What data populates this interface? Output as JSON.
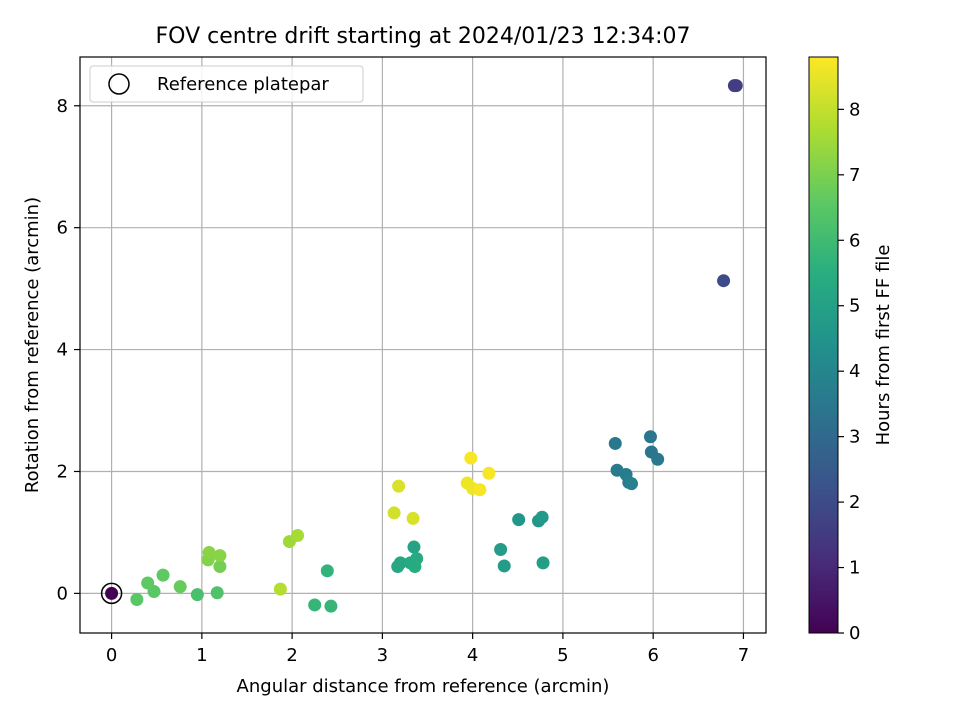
{
  "chart_data": {
    "type": "scatter",
    "title": "FOV centre drift starting at 2024/01/23 12:34:07",
    "xlabel": "Angular distance from reference (arcmin)",
    "ylabel": "Rotation from reference (arcmin)",
    "xlim": [
      -0.35,
      7.25
    ],
    "ylim": [
      -0.65,
      8.8
    ],
    "xticks": [
      "0",
      "1",
      "2",
      "3",
      "4",
      "5",
      "6",
      "7"
    ],
    "yticks": [
      "0",
      "2",
      "4",
      "6",
      "8"
    ],
    "grid": true,
    "legend": {
      "placement": "top-left",
      "entries": [
        "Reference platepar"
      ]
    },
    "reference_point": {
      "x": 0,
      "y": 0
    },
    "colorbar": {
      "label": "Hours from first FF file",
      "range": [
        0,
        8.8
      ],
      "ticks": [
        "0",
        "1",
        "2",
        "3",
        "4",
        "5",
        "6",
        "7",
        "8"
      ],
      "colormap": "viridis"
    },
    "points": [
      {
        "x": 0.0,
        "y": 0.0,
        "c": 0.0
      },
      {
        "x": 6.9,
        "y": 8.33,
        "c": 1.6
      },
      {
        "x": 6.92,
        "y": 8.33,
        "c": 1.6
      },
      {
        "x": 6.78,
        "y": 5.13,
        "c": 2.0
      },
      {
        "x": 5.97,
        "y": 2.57,
        "c": 3.4
      },
      {
        "x": 5.98,
        "y": 2.32,
        "c": 3.4
      },
      {
        "x": 6.05,
        "y": 2.2,
        "c": 3.5
      },
      {
        "x": 5.58,
        "y": 2.46,
        "c": 3.5
      },
      {
        "x": 5.6,
        "y": 2.02,
        "c": 3.6
      },
      {
        "x": 5.7,
        "y": 1.95,
        "c": 3.7
      },
      {
        "x": 5.73,
        "y": 1.82,
        "c": 3.7
      },
      {
        "x": 5.76,
        "y": 1.8,
        "c": 3.8
      },
      {
        "x": 4.51,
        "y": 1.21,
        "c": 4.6
      },
      {
        "x": 4.73,
        "y": 1.19,
        "c": 4.6
      },
      {
        "x": 4.77,
        "y": 1.25,
        "c": 4.7
      },
      {
        "x": 4.31,
        "y": 0.72,
        "c": 4.8
      },
      {
        "x": 4.35,
        "y": 0.45,
        "c": 4.8
      },
      {
        "x": 4.78,
        "y": 0.5,
        "c": 4.9
      },
      {
        "x": 3.35,
        "y": 0.76,
        "c": 5.1
      },
      {
        "x": 3.2,
        "y": 0.5,
        "c": 5.2
      },
      {
        "x": 3.17,
        "y": 0.44,
        "c": 5.2
      },
      {
        "x": 3.31,
        "y": 0.5,
        "c": 5.3
      },
      {
        "x": 3.38,
        "y": 0.57,
        "c": 5.3
      },
      {
        "x": 3.36,
        "y": 0.44,
        "c": 5.4
      },
      {
        "x": 2.39,
        "y": 0.37,
        "c": 5.7
      },
      {
        "x": 2.25,
        "y": -0.19,
        "c": 5.8
      },
      {
        "x": 2.43,
        "y": -0.21,
        "c": 5.8
      },
      {
        "x": 0.95,
        "y": -0.02,
        "c": 6.2
      },
      {
        "x": 1.17,
        "y": 0.01,
        "c": 6.3
      },
      {
        "x": 0.28,
        "y": -0.1,
        "c": 6.5
      },
      {
        "x": 0.47,
        "y": 0.03,
        "c": 6.5
      },
      {
        "x": 0.4,
        "y": 0.17,
        "c": 6.6
      },
      {
        "x": 0.57,
        "y": 0.3,
        "c": 6.6
      },
      {
        "x": 0.76,
        "y": 0.11,
        "c": 6.7
      },
      {
        "x": 1.2,
        "y": 0.44,
        "c": 6.9
      },
      {
        "x": 1.07,
        "y": 0.55,
        "c": 7.1
      },
      {
        "x": 1.08,
        "y": 0.67,
        "c": 7.2
      },
      {
        "x": 1.2,
        "y": 0.62,
        "c": 7.2
      },
      {
        "x": 1.97,
        "y": 0.85,
        "c": 7.5
      },
      {
        "x": 2.06,
        "y": 0.95,
        "c": 7.6
      },
      {
        "x": 1.87,
        "y": 0.07,
        "c": 7.8
      },
      {
        "x": 3.13,
        "y": 1.32,
        "c": 8.2
      },
      {
        "x": 3.18,
        "y": 1.76,
        "c": 8.3
      },
      {
        "x": 3.34,
        "y": 1.23,
        "c": 8.3
      },
      {
        "x": 3.94,
        "y": 1.81,
        "c": 8.6
      },
      {
        "x": 4.0,
        "y": 1.72,
        "c": 8.6
      },
      {
        "x": 4.08,
        "y": 1.7,
        "c": 8.7
      },
      {
        "x": 3.98,
        "y": 2.22,
        "c": 8.7
      },
      {
        "x": 4.18,
        "y": 1.97,
        "c": 8.7
      }
    ]
  }
}
